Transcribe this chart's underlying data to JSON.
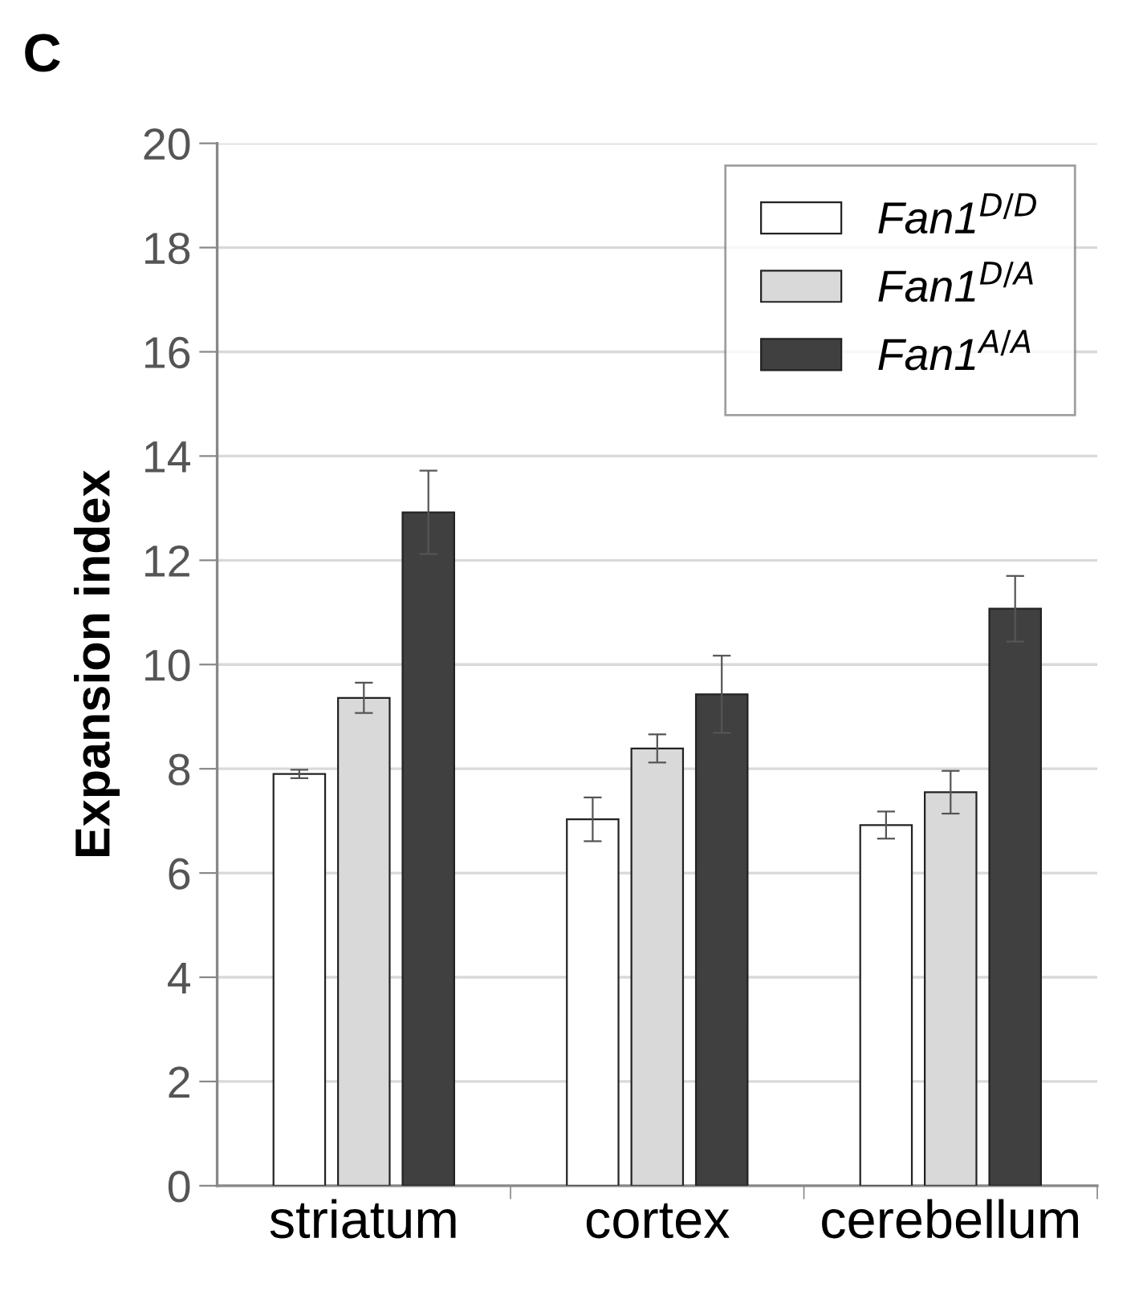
{
  "chart_data": {
    "type": "bar",
    "title": "C",
    "ylabel": "Expansion index",
    "categories": [
      "striatum",
      "cortex",
      "cerebellum"
    ],
    "series": [
      {
        "name": "Fan1$^{D/D}$",
        "color": "#ffffff",
        "values": [
          7.9,
          7.03,
          6.92
        ],
        "errors": [
          0.08,
          0.42,
          0.26
        ]
      },
      {
        "name": "Fan1$^{D/A}$",
        "color": "#d9d9d9",
        "values": [
          9.36,
          8.39,
          7.55
        ],
        "errors": [
          0.29,
          0.27,
          0.41
        ]
      },
      {
        "name": "Fan1$^{A/A}$",
        "color": "#404040",
        "values": [
          12.92,
          9.43,
          11.07
        ],
        "errors": [
          0.8,
          0.74,
          0.63
        ]
      }
    ],
    "ylim": [
      0,
      20
    ],
    "yticks": [
      0,
      2,
      4,
      6,
      8,
      10,
      12,
      14,
      16,
      18,
      20
    ],
    "grid": "y",
    "legend": "top right"
  }
}
